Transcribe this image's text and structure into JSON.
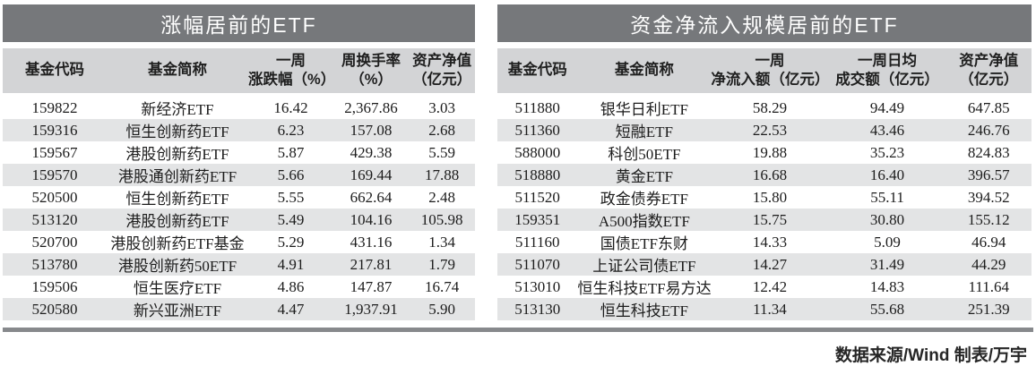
{
  "footer": {
    "source_note": "数据来源/Wind 制表/万宇"
  },
  "colors": {
    "title_bar": "#76787b",
    "title_text": "#ffffff",
    "header_row": "#d3d4d6",
    "alt_row": "#e3e4e5",
    "bottom_rule": "#87898c",
    "text": "#1c1c1c"
  },
  "chart_data": [
    {
      "type": "table",
      "title": "涨幅居前的ETF",
      "columns": [
        [
          "基金代码"
        ],
        [
          "基金简称"
        ],
        [
          "一周",
          "涨跌幅（%）"
        ],
        [
          "周换手率",
          "（%）"
        ],
        [
          "资产净值",
          "（亿元）"
        ]
      ],
      "rows": [
        [
          "159822",
          "新经济ETF",
          "16.42",
          "2,367.86",
          "3.03"
        ],
        [
          "159316",
          "恒生创新药ETF",
          "6.23",
          "157.08",
          "2.68"
        ],
        [
          "159567",
          "港股创新药ETF",
          "5.87",
          "429.38",
          "5.59"
        ],
        [
          "159570",
          "港股通创新药ETF",
          "5.66",
          "169.44",
          "17.88"
        ],
        [
          "520500",
          "恒生创新药ETF",
          "5.55",
          "662.64",
          "2.48"
        ],
        [
          "513120",
          "港股创新药ETF",
          "5.49",
          "104.16",
          "105.98"
        ],
        [
          "520700",
          "港股创新药ETF基金",
          "5.29",
          "431.16",
          "1.34"
        ],
        [
          "513780",
          "港股创新药50ETF",
          "4.91",
          "217.81",
          "1.79"
        ],
        [
          "159506",
          "恒生医疗ETF",
          "4.86",
          "147.87",
          "16.74"
        ],
        [
          "520580",
          "新兴亚洲ETF",
          "4.47",
          "1,937.91",
          "5.90"
        ]
      ]
    },
    {
      "type": "table",
      "title": "资金净流入规模居前的ETF",
      "columns": [
        [
          "基金代码"
        ],
        [
          "基金简称"
        ],
        [
          "一周",
          "净流入额（亿元）"
        ],
        [
          "一周日均",
          "成交额（亿元）"
        ],
        [
          "资产净值",
          "（亿元）"
        ]
      ],
      "rows": [
        [
          "511880",
          "银华日利ETF",
          "58.29",
          "94.49",
          "647.85"
        ],
        [
          "511360",
          "短融ETF",
          "22.53",
          "43.46",
          "246.76"
        ],
        [
          "588000",
          "科创50ETF",
          "19.88",
          "35.23",
          "824.83"
        ],
        [
          "518880",
          "黄金ETF",
          "16.68",
          "16.40",
          "396.57"
        ],
        [
          "511520",
          "政金债券ETF",
          "15.80",
          "55.11",
          "394.52"
        ],
        [
          "159351",
          "A500指数ETF",
          "15.75",
          "30.80",
          "155.12"
        ],
        [
          "511160",
          "国债ETF东财",
          "14.33",
          "5.09",
          "46.94"
        ],
        [
          "511070",
          "上证公司债ETF",
          "14.27",
          "31.49",
          "44.29"
        ],
        [
          "513010",
          "恒生科技ETF易方达",
          "12.42",
          "14.83",
          "111.64"
        ],
        [
          "513130",
          "恒生科技ETF",
          "11.34",
          "55.68",
          "251.39"
        ]
      ]
    }
  ]
}
